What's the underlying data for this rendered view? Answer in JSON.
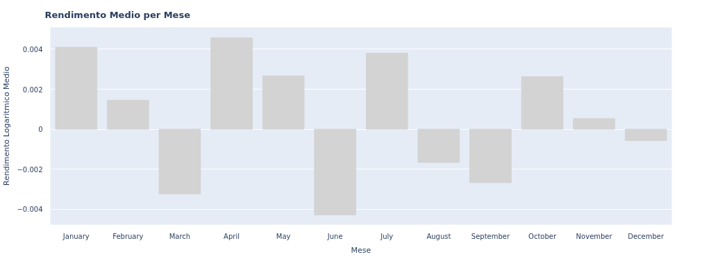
{
  "chart_data": {
    "type": "bar",
    "title": "Rendimento Medio per Mese",
    "xlabel": "Mese",
    "ylabel": "Rendimento Logaritmico Medio",
    "categories": [
      "January",
      "February",
      "March",
      "April",
      "May",
      "June",
      "July",
      "August",
      "September",
      "October",
      "November",
      "December"
    ],
    "values": [
      0.0041,
      0.00145,
      -0.00323,
      0.00457,
      0.00267,
      -0.00428,
      0.0038,
      -0.00166,
      -0.00267,
      0.00263,
      0.00053,
      -0.00057
    ],
    "color": "#d3d3d3",
    "ylim": [
      -0.00477,
      0.00509
    ],
    "yticks": [
      {
        "value": -0.004,
        "label": "−0.004"
      },
      {
        "value": -0.002,
        "label": "−0.002"
      },
      0,
      0.002,
      0.004
    ],
    "grid": "y"
  }
}
